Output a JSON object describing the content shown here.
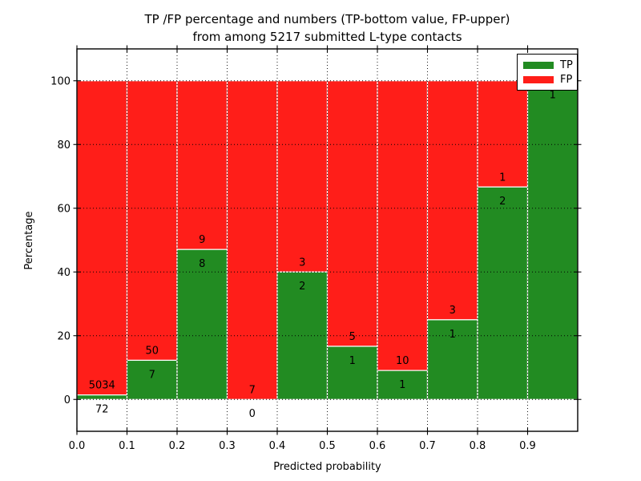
{
  "figure": {
    "background": "#ffffff",
    "title_line1": "TP /FP percentage and numbers (TP-bottom value, FP-upper)",
    "title_line2": "from among 5217 submitted L-type contacts"
  },
  "legend": {
    "position": "upper-right",
    "entries": [
      {
        "label": "TP",
        "color": "#228b22"
      },
      {
        "label": "FP",
        "color": "#ff1e19"
      }
    ]
  },
  "chart_data": {
    "type": "bar",
    "stacked": true,
    "title": "TP /FP percentage and numbers (TP-bottom value, FP-upper)\nfrom among 5217 submitted L-type contacts",
    "xlabel": "Predicted probability",
    "ylabel": "Percentage",
    "xlim": [
      0.0,
      1.0
    ],
    "ylim": [
      -10,
      110
    ],
    "xticks": [
      "0.0",
      "0.1",
      "0.2",
      "0.3",
      "0.4",
      "0.5",
      "0.6",
      "0.7",
      "0.8",
      "0.9"
    ],
    "yticks": [
      "0",
      "20",
      "40",
      "60",
      "80",
      "100"
    ],
    "grid": "dotted black gridlines on both axes, drawn above bars",
    "bin_width": 0.1,
    "series": [
      {
        "name": "TP",
        "color": "#228b22",
        "position": "bottom"
      },
      {
        "name": "FP",
        "color": "#ff1e19",
        "position": "top"
      }
    ],
    "bins": [
      {
        "x0": 0.0,
        "x1": 0.1,
        "tp_count": 72,
        "fp_count": 5034,
        "tp_pct": 1.41,
        "fp_pct": 98.59
      },
      {
        "x0": 0.1,
        "x1": 0.2,
        "tp_count": 7,
        "fp_count": 50,
        "tp_pct": 12.28,
        "fp_pct": 87.72
      },
      {
        "x0": 0.2,
        "x1": 0.3,
        "tp_count": 8,
        "fp_count": 9,
        "tp_pct": 47.06,
        "fp_pct": 52.94
      },
      {
        "x0": 0.3,
        "x1": 0.4,
        "tp_count": 0,
        "fp_count": 7,
        "tp_pct": 0.0,
        "fp_pct": 100.0
      },
      {
        "x0": 0.4,
        "x1": 0.5,
        "tp_count": 2,
        "fp_count": 3,
        "tp_pct": 40.0,
        "fp_pct": 60.0
      },
      {
        "x0": 0.5,
        "x1": 0.6,
        "tp_count": 1,
        "fp_count": 5,
        "tp_pct": 16.67,
        "fp_pct": 83.33
      },
      {
        "x0": 0.6,
        "x1": 0.7,
        "tp_count": 1,
        "fp_count": 10,
        "tp_pct": 9.09,
        "fp_pct": 90.91
      },
      {
        "x0": 0.7,
        "x1": 0.8,
        "tp_count": 1,
        "fp_count": 3,
        "tp_pct": 25.0,
        "fp_pct": 75.0
      },
      {
        "x0": 0.8,
        "x1": 0.9,
        "tp_count": 2,
        "fp_count": 1,
        "tp_pct": 66.67,
        "fp_pct": 33.33
      },
      {
        "x0": 0.9,
        "x1": 1.0,
        "tp_count": 1,
        "fp_count": 0,
        "tp_pct": 100.0,
        "fp_pct": 0.0,
        "fp_label_visible": false
      }
    ]
  }
}
